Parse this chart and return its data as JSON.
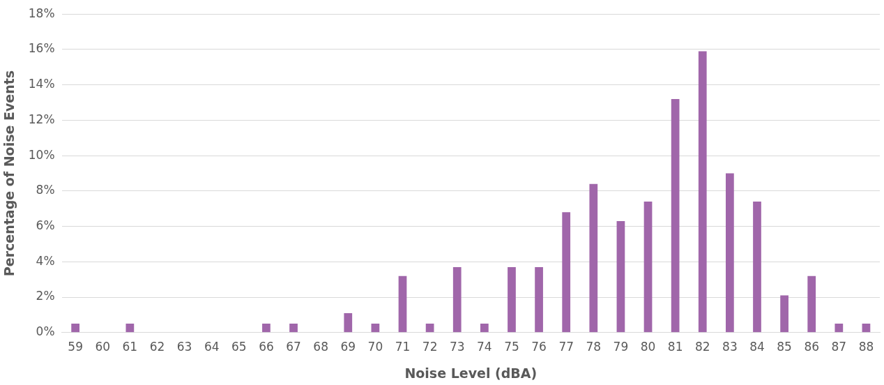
{
  "chart_data": {
    "type": "bar",
    "xlabel": "Noise Level (dBA)",
    "ylabel": "Percentage of Noise Events",
    "categories": [
      "59",
      "60",
      "61",
      "62",
      "63",
      "64",
      "65",
      "66",
      "67",
      "68",
      "69",
      "70",
      "71",
      "72",
      "73",
      "74",
      "75",
      "76",
      "77",
      "78",
      "79",
      "80",
      "81",
      "82",
      "83",
      "84",
      "85",
      "86",
      "87",
      "88"
    ],
    "values": [
      0.5,
      0,
      0.5,
      0,
      0,
      0,
      0,
      0.5,
      0.5,
      0,
      1.1,
      0.5,
      3.2,
      0.5,
      3.7,
      0.5,
      3.7,
      3.7,
      6.8,
      8.4,
      6.3,
      7.4,
      13.2,
      15.9,
      9.0,
      7.4,
      2.1,
      3.2,
      0.5,
      0.5
    ],
    "color": "#a066aa",
    "ylim": [
      0,
      18
    ],
    "yticks": [
      {
        "value": 0,
        "label": "0%"
      },
      {
        "value": 2,
        "label": "2%"
      },
      {
        "value": 4,
        "label": "4%"
      },
      {
        "value": 6,
        "label": "6%"
      },
      {
        "value": 8,
        "label": "8%"
      },
      {
        "value": 10,
        "label": "10%"
      },
      {
        "value": 12,
        "label": "12%"
      },
      {
        "value": 14,
        "label": "14%"
      },
      {
        "value": 16,
        "label": "16%"
      },
      {
        "value": 18,
        "label": "18%"
      }
    ],
    "grid": "y",
    "legend": false
  }
}
